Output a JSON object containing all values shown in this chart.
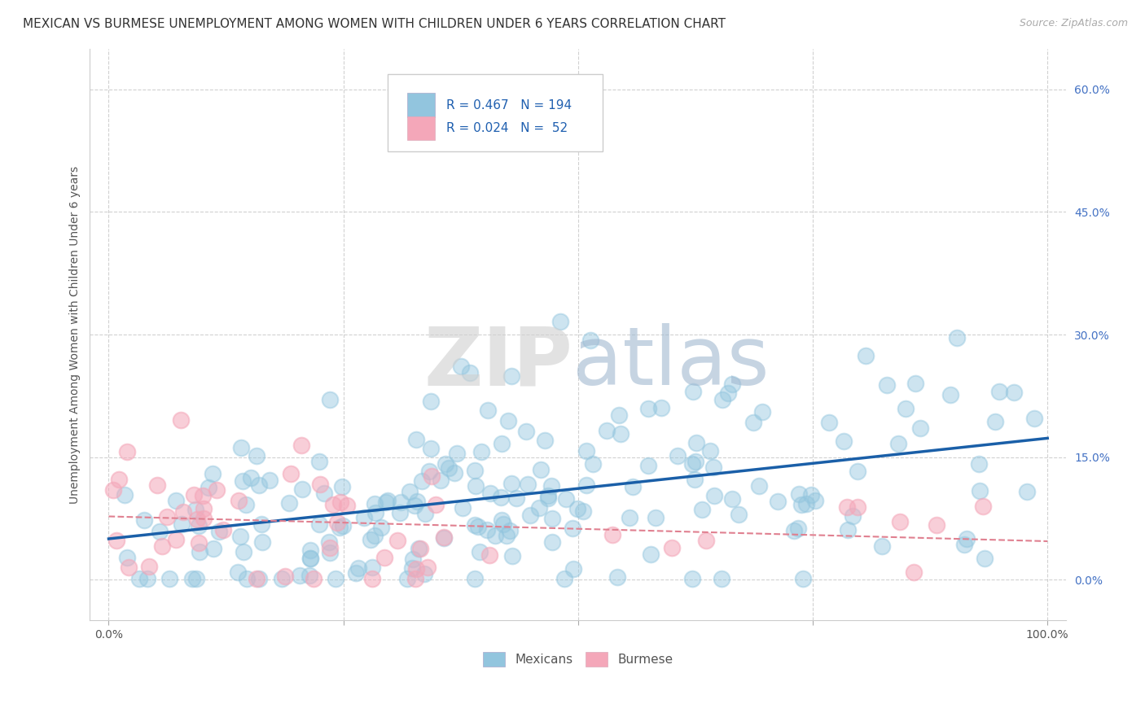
{
  "title": "MEXICAN VS BURMESE UNEMPLOYMENT AMONG WOMEN WITH CHILDREN UNDER 6 YEARS CORRELATION CHART",
  "source": "Source: ZipAtlas.com",
  "ylabel": "Unemployment Among Women with Children Under 6 years",
  "watermark_zip": "ZIP",
  "watermark_atlas": "atlas",
  "legend_r1": "R = 0.467",
  "legend_n1": "N = 194",
  "legend_r2": "R = 0.024",
  "legend_n2": "N =  52",
  "mexican_color": "#92c5de",
  "burmese_color": "#f4a7b9",
  "trend_mexican_color": "#1a5fa8",
  "trend_burmese_color": "#e08090",
  "xlim": [
    -0.02,
    1.02
  ],
  "ylim": [
    -0.05,
    0.65
  ],
  "yticks": [
    0.0,
    0.15,
    0.3,
    0.45,
    0.6
  ],
  "xtick_positions": [
    0.0,
    0.25,
    0.5,
    0.75,
    1.0
  ],
  "xtick_labels": [
    "0.0%",
    "",
    "",
    "",
    "100.0%"
  ],
  "background_color": "#ffffff",
  "grid_color": "#cccccc",
  "title_fontsize": 11,
  "label_fontsize": 10,
  "tick_fontsize": 10,
  "watermark_color_zip": "#d0d0d0",
  "watermark_color_atlas": "#a0b8d0",
  "mex_seed": 42,
  "bur_seed": 7
}
